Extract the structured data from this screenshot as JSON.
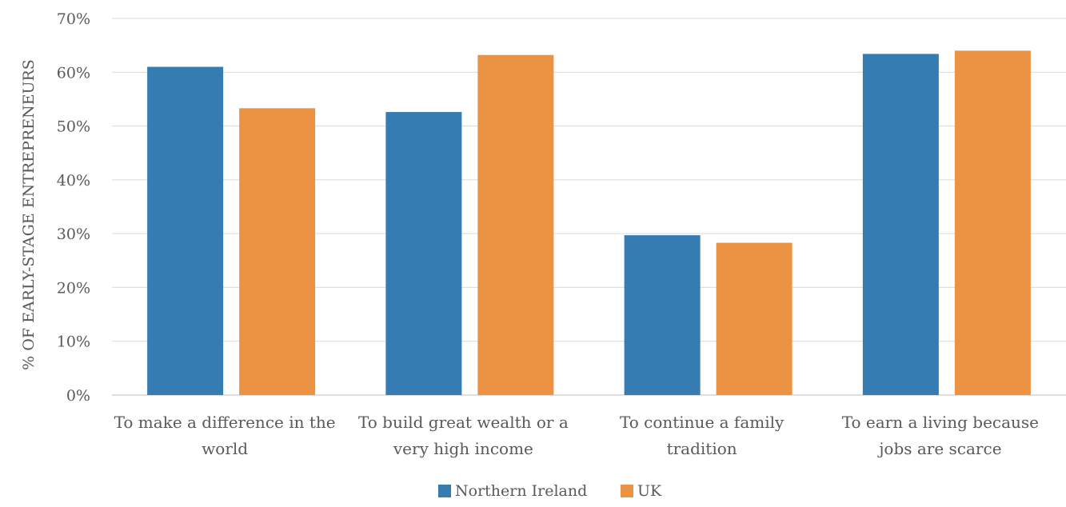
{
  "chart_data": {
    "type": "bar",
    "title": "",
    "xlabel": "",
    "ylabel": "% OF EARLY-STAGE ENTREPRENEURS",
    "ylim": [
      0,
      70
    ],
    "y_ticks": [
      "0%",
      "10%",
      "20%",
      "30%",
      "40%",
      "50%",
      "60%",
      "70%"
    ],
    "y_tick_values": [
      0,
      10,
      20,
      30,
      40,
      50,
      60,
      70
    ],
    "grid": true,
    "legend_position": "bottom",
    "categories": [
      [
        "To make a difference in the",
        "world"
      ],
      [
        "To build great wealth or a",
        "very high income"
      ],
      [
        "To continue a family",
        "tradition"
      ],
      [
        "To earn a living because",
        "jobs are scarce"
      ]
    ],
    "series": [
      {
        "name": "Northern Ireland",
        "color": "#357cb3",
        "values": [
          61,
          52.6,
          29.7,
          63.4
        ]
      },
      {
        "name": "UK",
        "color": "#eb9343",
        "values": [
          53.3,
          63.2,
          28.3,
          64
        ]
      }
    ]
  }
}
